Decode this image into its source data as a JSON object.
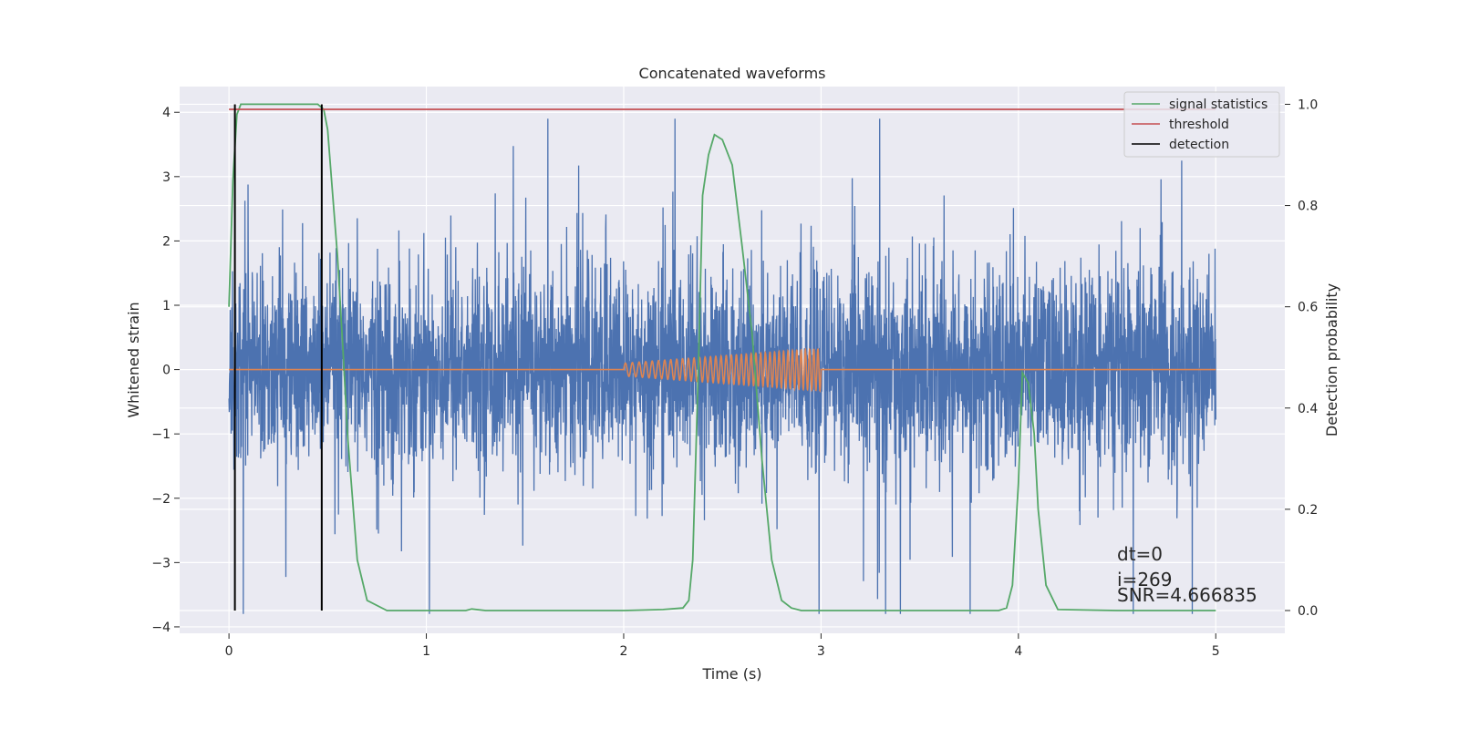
{
  "chart_data": {
    "type": "line",
    "title": "Concatenated waveforms",
    "xlabel": "Time (s)",
    "ylabel": "Whitened strain",
    "y2label": "Detection probability",
    "xlim": [
      -0.25,
      5.35
    ],
    "ylim": [
      -4.1,
      4.4
    ],
    "y2lim": [
      -0.045,
      1.035
    ],
    "xticks": [
      0,
      1,
      2,
      3,
      4,
      5
    ],
    "yticks": [
      -4,
      -3,
      -2,
      -1,
      0,
      1,
      2,
      3,
      4
    ],
    "y2ticks": [
      0.0,
      0.2,
      0.4,
      0.6,
      0.8,
      1.0
    ],
    "xtick_labels": [
      "0",
      "1",
      "2",
      "3",
      "4",
      "5"
    ],
    "ytick_labels": [
      "−4",
      "−3",
      "−2",
      "−1",
      "0",
      "1",
      "2",
      "3",
      "4"
    ],
    "y2tick_labels": [
      "0.0",
      "0.2",
      "0.4",
      "0.6",
      "0.8",
      "1.0"
    ],
    "grid": true,
    "legend_position": "top-right",
    "series": [
      {
        "name": "signal statistics",
        "axis": "right",
        "color": "#55a868",
        "x": [
          0,
          0.02,
          0.04,
          0.06,
          0.1,
          0.2,
          0.3,
          0.4,
          0.45,
          0.48,
          0.5,
          0.52,
          0.55,
          0.58,
          0.6,
          0.65,
          0.7,
          0.8,
          1.0,
          1.2,
          1.23,
          1.3,
          1.5,
          1.8,
          2.0,
          2.2,
          2.3,
          2.33,
          2.35,
          2.38,
          2.4,
          2.43,
          2.46,
          2.5,
          2.55,
          2.6,
          2.65,
          2.7,
          2.75,
          2.8,
          2.85,
          2.9,
          3.0,
          3.2,
          3.5,
          3.8,
          3.9,
          3.94,
          3.97,
          4.0,
          4.02,
          4.05,
          4.08,
          4.1,
          4.14,
          4.2,
          4.5,
          5.0
        ],
        "values": [
          0.6,
          0.85,
          0.98,
          1.0,
          1.0,
          1.0,
          1.0,
          1.0,
          1.0,
          0.99,
          0.95,
          0.85,
          0.7,
          0.5,
          0.35,
          0.1,
          0.02,
          0.0,
          0.0,
          0.0,
          0.003,
          0.0,
          0.0,
          0.0,
          0.0,
          0.002,
          0.005,
          0.02,
          0.1,
          0.5,
          0.82,
          0.9,
          0.94,
          0.93,
          0.88,
          0.72,
          0.55,
          0.3,
          0.1,
          0.02,
          0.005,
          0.0,
          0.0,
          0.0,
          0.0,
          0.0,
          0.0,
          0.005,
          0.05,
          0.25,
          0.47,
          0.45,
          0.35,
          0.2,
          0.05,
          0.002,
          0.0,
          0.0
        ]
      },
      {
        "name": "threshold",
        "axis": "right",
        "color": "#c44e52",
        "x": [
          0,
          5.0
        ],
        "values": [
          0.99,
          0.99
        ]
      },
      {
        "name": "detection",
        "axis": "right",
        "color": "#000000",
        "type": "vlines",
        "x": [
          0.03,
          0.47
        ],
        "ymin": 0.0,
        "ymax": 1.0
      },
      {
        "axis": "left",
        "color": "#4c72b0",
        "type": "noise",
        "x_range": [
          0,
          5.0
        ],
        "std": 0.75,
        "extent": [
          -3.8,
          3.9
        ]
      },
      {
        "axis": "left",
        "color": "#dd8452",
        "type": "chirp",
        "x_range": [
          0,
          5.0
        ],
        "chirp_range": [
          2.0,
          3.0
        ],
        "amplitude_range": [
          0.1,
          0.33
        ]
      }
    ],
    "annotations": [
      "dt=0",
      "i=269",
      "SNR=4.666835"
    ]
  }
}
